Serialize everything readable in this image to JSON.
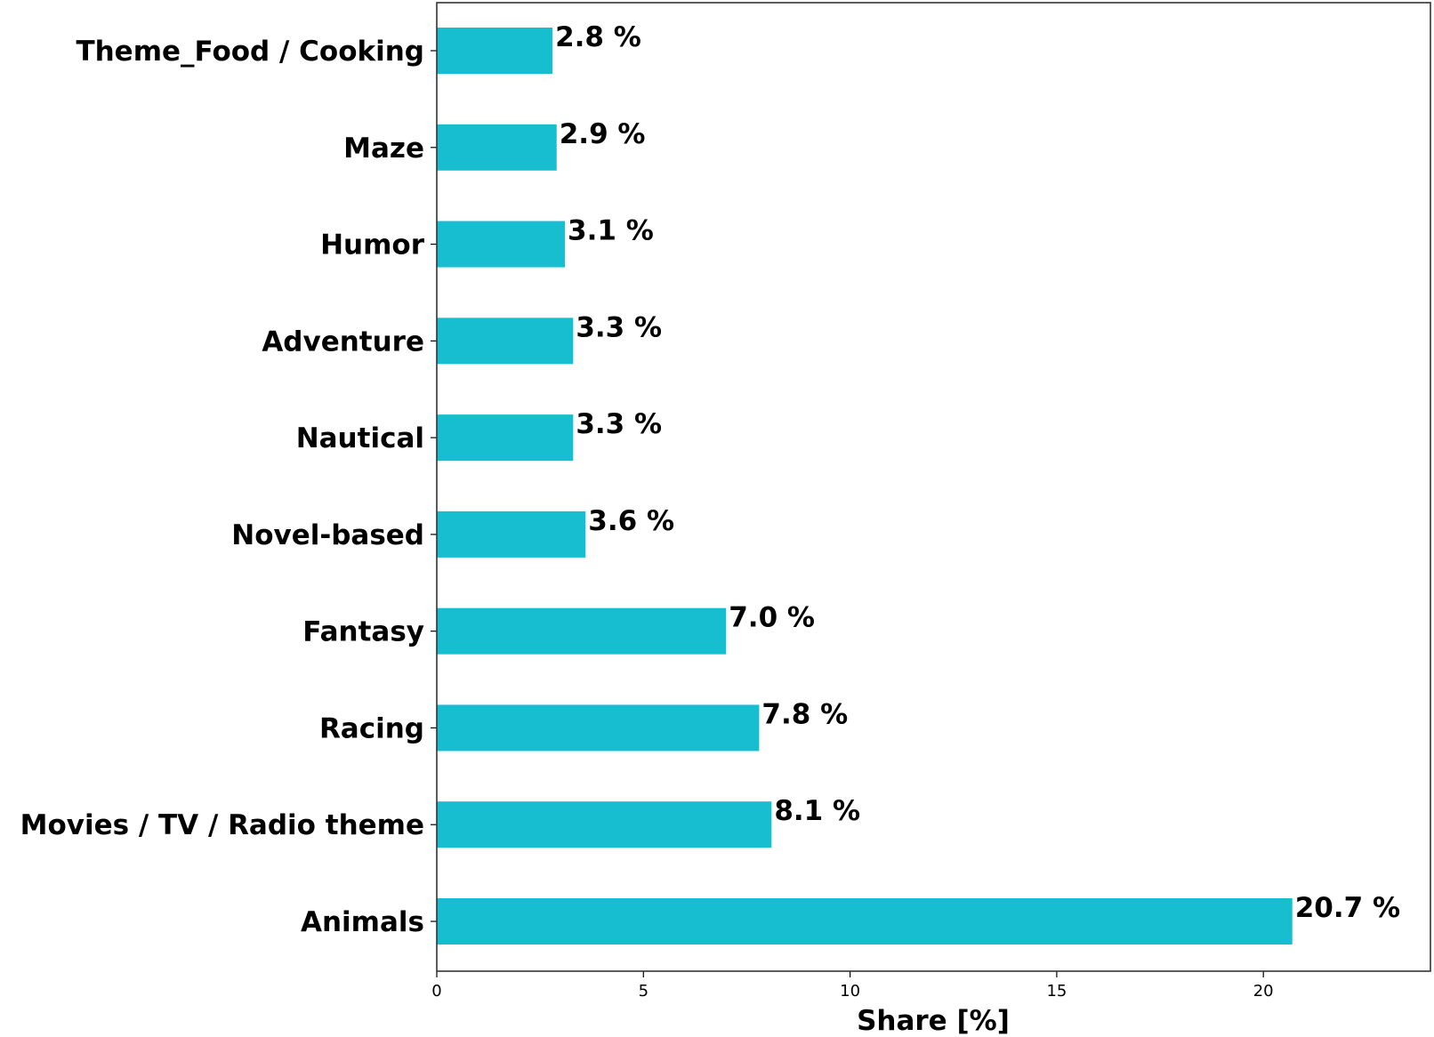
{
  "chart_data": {
    "type": "bar",
    "orientation": "horizontal",
    "categories": [
      "Animals",
      "Movies / TV / Radio theme",
      "Racing",
      "Fantasy",
      "Novel-based",
      "Nautical",
      "Adventure",
      "Humor",
      "Maze",
      "Theme_Food / Cooking"
    ],
    "values": [
      20.7,
      8.1,
      7.8,
      7.0,
      3.6,
      3.3,
      3.3,
      3.1,
      2.9,
      2.8
    ],
    "value_labels": [
      "20.7 %",
      "8.1 %",
      "7.8 %",
      "7.0 %",
      "3.6 %",
      "3.3 %",
      "3.3 %",
      "3.1 %",
      "2.9 %",
      "2.8 %"
    ],
    "xlabel": "Share [%]",
    "ylabel": "",
    "xlim": [
      0,
      24
    ],
    "xticks": [
      0,
      5,
      10,
      15,
      20
    ],
    "xtick_labels": [
      "0",
      "5",
      "10",
      "15",
      "20"
    ],
    "bar_color": "#17becf",
    "grid": false,
    "legend": "none"
  }
}
